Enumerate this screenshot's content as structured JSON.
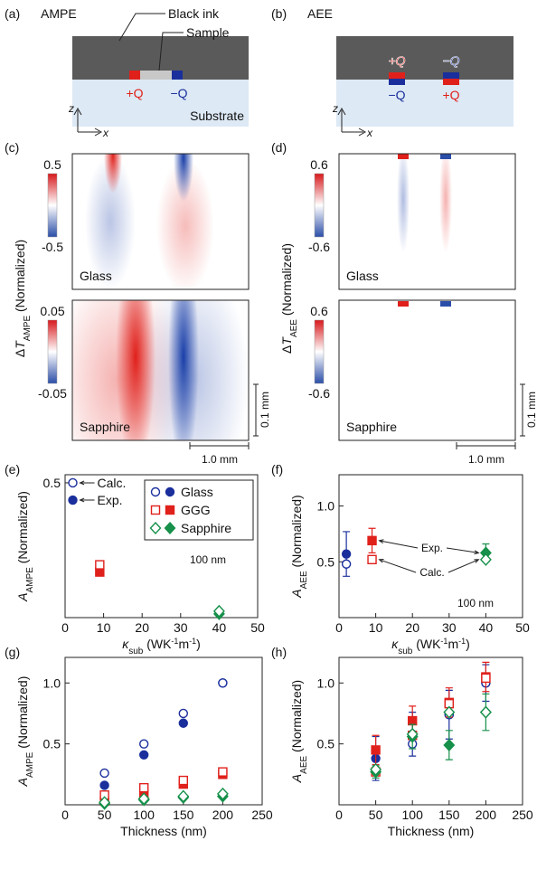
{
  "panels": {
    "a": {
      "label": "(a)",
      "title": "AMPE",
      "ink": "Black ink",
      "sample": "Sample",
      "plus": "+Q",
      "minus": "−Q",
      "substrate": "Substrate",
      "z": "z",
      "x": "x"
    },
    "b": {
      "label": "(b)",
      "title": "AEE",
      "top_left": "+Q",
      "top_right": "−Q",
      "bottom_left": "−Q",
      "bottom_right": "+Q",
      "z": "z",
      "x": "x"
    },
    "c": {
      "label": "(c)",
      "ylabel": [
        {
          "text": "Δ"
        },
        {
          "text": "T",
          "style": "italic"
        },
        {
          "text": "AMPE",
          "style": "sub"
        },
        {
          "text": " (Normalized)"
        }
      ],
      "maps": [
        {
          "name": "Glass",
          "cbar": [
            0.5,
            -0.5
          ]
        },
        {
          "name": "Sapphire",
          "cbar": [
            0.05,
            -0.05
          ]
        }
      ],
      "scale_z": "0.1 mm",
      "scale_x": "1.0 mm"
    },
    "d": {
      "label": "(d)",
      "ylabel": [
        {
          "text": "Δ"
        },
        {
          "text": "T",
          "style": "italic"
        },
        {
          "text": "AEE",
          "style": "sub"
        },
        {
          "text": " (Normalized)"
        }
      ],
      "maps": [
        {
          "name": "Glass",
          "cbar": [
            0.6,
            -0.6
          ]
        },
        {
          "name": "Sapphire",
          "cbar": [
            0.6,
            -0.6
          ]
        }
      ],
      "scale_z": "0.1 mm",
      "scale_x": "1.0 mm"
    }
  },
  "chart_data": [
    {
      "type": "scatter",
      "label": "(e)",
      "xlabel": [
        {
          "text": "κ",
          "style": "italic"
        },
        {
          "text": "sub",
          "style": "sub"
        },
        {
          "text": " (WK"
        },
        {
          "text": "-1",
          "style": "sup"
        },
        {
          "text": "m"
        },
        {
          "text": "-1",
          "style": "sup"
        },
        {
          "text": ")"
        }
      ],
      "ylabel": [
        {
          "text": "A",
          "style": "italic"
        },
        {
          "text": "AMPE",
          "style": "sub"
        },
        {
          "text": " (Normalized)"
        }
      ],
      "xlim": [
        0,
        50
      ],
      "xticks": [
        0,
        10,
        20,
        30,
        40,
        50
      ],
      "ylim": [
        0,
        0.53
      ],
      "yticks": [
        0.5
      ],
      "legend": "top-right",
      "annotations": [
        "Calc.",
        "Exp.",
        "100 nm"
      ],
      "series": [
        {
          "name": "Glass",
          "color": "#1a2f9c",
          "marker": "circle",
          "calc": {
            "x": [
              2
            ],
            "values": [
              0.5
            ]
          },
          "exp": {
            "x": [
              2
            ],
            "values": [
              0.436
            ]
          }
        },
        {
          "name": "GGG",
          "color": "#e0201b",
          "marker": "square",
          "calc": {
            "x": [
              9
            ],
            "values": [
              0.196
            ]
          },
          "exp": {
            "x": [
              9
            ],
            "values": [
              0.169
            ]
          }
        },
        {
          "name": "Sapphire",
          "color": "#16904a",
          "marker": "diamond",
          "calc": {
            "x": [
              40
            ],
            "values": [
              0.024
            ]
          },
          "exp": {
            "x": [
              40
            ],
            "values": [
              0.014
            ]
          }
        }
      ]
    },
    {
      "type": "scatter",
      "label": "(f)",
      "xlabel": [
        {
          "text": "κ",
          "style": "italic"
        },
        {
          "text": "sub",
          "style": "sub"
        },
        {
          "text": " (WK"
        },
        {
          "text": "-1",
          "style": "sup"
        },
        {
          "text": "m"
        },
        {
          "text": "-1",
          "style": "sup"
        },
        {
          "text": ")"
        }
      ],
      "ylabel": [
        {
          "text": "A",
          "style": "italic"
        },
        {
          "text": "AEE",
          "style": "sub"
        },
        {
          "text": " (Normalized)"
        }
      ],
      "xlim": [
        0,
        50
      ],
      "xticks": [
        0,
        10,
        20,
        30,
        40,
        50
      ],
      "ylim": [
        0,
        1.28
      ],
      "yticks": [
        0.5,
        {
          "value": 1,
          "label": "1.0"
        }
      ],
      "annotations": [
        "Exp.",
        "Calc.",
        "100 nm"
      ],
      "series": [
        {
          "name": "Glass",
          "color": "#1a2f9c",
          "marker": "circle",
          "calc": {
            "x": [
              2
            ],
            "values": [
              0.48
            ]
          },
          "exp": {
            "x": [
              2
            ],
            "values": [
              0.57
            ],
            "errors": [
              0.2
            ]
          }
        },
        {
          "name": "GGG",
          "color": "#e0201b",
          "marker": "square",
          "calc": {
            "x": [
              9
            ],
            "values": [
              0.52
            ]
          },
          "exp": {
            "x": [
              9
            ],
            "values": [
              0.69
            ],
            "errors": [
              0.11
            ]
          }
        },
        {
          "name": "Sapphire",
          "color": "#16904a",
          "marker": "diamond",
          "calc": {
            "x": [
              40
            ],
            "values": [
              0.52
            ]
          },
          "exp": {
            "x": [
              40
            ],
            "values": [
              0.58
            ],
            "errors": [
              0.08
            ]
          }
        }
      ]
    },
    {
      "type": "scatter",
      "label": "(g)",
      "xlabel": [
        {
          "text": "Thickness (nm)"
        }
      ],
      "ylabel": [
        {
          "text": "A",
          "style": "italic"
        },
        {
          "text": "AMPE",
          "style": "sub"
        },
        {
          "text": " (Normalized)"
        }
      ],
      "xlim": [
        0,
        250
      ],
      "xticks": [
        0,
        50,
        100,
        150,
        200,
        250
      ],
      "ylim": [
        0,
        1.21
      ],
      "yticks": [
        0.5,
        {
          "value": 1,
          "label": "1.0"
        }
      ],
      "series": [
        {
          "name": "Glass",
          "color": "#1a2f9c",
          "marker": "circle",
          "calc": {
            "x": [
              50,
              100,
              150,
              200
            ],
            "values": [
              0.26,
              0.5,
              0.75,
              1.0
            ]
          },
          "exp": {
            "x": [
              50,
              100,
              150,
              200
            ],
            "values": [
              0.16,
              0.41,
              0.67,
              1.0
            ]
          }
        },
        {
          "name": "GGG",
          "color": "#e0201b",
          "marker": "square",
          "calc": {
            "x": [
              50,
              100,
              150,
              200
            ],
            "values": [
              0.08,
              0.14,
              0.2,
              0.27
            ]
          },
          "exp": {
            "x": [
              50,
              100,
              150,
              200
            ],
            "values": [
              0.03,
              0.09,
              0.17,
              0.25
            ]
          }
        },
        {
          "name": "Sapphire",
          "color": "#16904a",
          "marker": "diamond",
          "calc": {
            "x": [
              50,
              100,
              150,
              200
            ],
            "values": [
              0.02,
              0.05,
              0.07,
              0.09
            ]
          },
          "exp": {
            "x": [
              50,
              100,
              150,
              200
            ],
            "values": [
              0.01,
              0.04,
              0.06,
              0.07
            ]
          }
        }
      ]
    },
    {
      "type": "scatter",
      "label": "(h)",
      "xlabel": [
        {
          "text": "Thickness (nm)"
        }
      ],
      "ylabel": [
        {
          "text": "A",
          "style": "italic"
        },
        {
          "text": "AEE",
          "style": "sub"
        },
        {
          "text": " (Normalized)"
        }
      ],
      "xlim": [
        0,
        250
      ],
      "xticks": [
        0,
        50,
        100,
        150,
        200,
        250
      ],
      "ylim": [
        0,
        1.21
      ],
      "yticks": [
        0.5,
        {
          "value": 1,
          "label": "1.0"
        }
      ],
      "series": [
        {
          "name": "Glass",
          "color": "#1a2f9c",
          "marker": "circle",
          "calc": {
            "x": [
              50,
              100,
              150,
              200
            ],
            "values": [
              0.27,
              0.5,
              0.74,
              1.0
            ]
          },
          "exp": {
            "x": [
              50,
              100,
              150,
              200
            ],
            "values": [
              0.38,
              0.58,
              0.74,
              1.0
            ],
            "errors": [
              0.18,
              0.18,
              0.2,
              0.15
            ]
          }
        },
        {
          "name": "GGG",
          "color": "#e0201b",
          "marker": "square",
          "calc": {
            "x": [
              50,
              100,
              150,
              200
            ],
            "values": [
              0.27,
              0.57,
              0.83,
              1.04
            ]
          },
          "exp": {
            "x": [
              50,
              100,
              150,
              200
            ],
            "values": [
              0.45,
              0.69,
              0.84,
              1.05
            ],
            "errors": [
              0.12,
              0.12,
              0.12,
              0.12
            ]
          }
        },
        {
          "name": "Sapphire",
          "color": "#16904a",
          "marker": "diamond",
          "calc": {
            "x": [
              50,
              100,
              150,
              200
            ],
            "values": [
              0.29,
              0.58,
              0.76,
              0.76
            ]
          },
          "exp": {
            "x": [
              50,
              100,
              150,
              200
            ],
            "values": [
              0.27,
              0.56,
              0.49,
              0.76
            ],
            "errors": [
              0.05,
              0.1,
              0.12,
              0.15
            ]
          }
        }
      ]
    }
  ]
}
